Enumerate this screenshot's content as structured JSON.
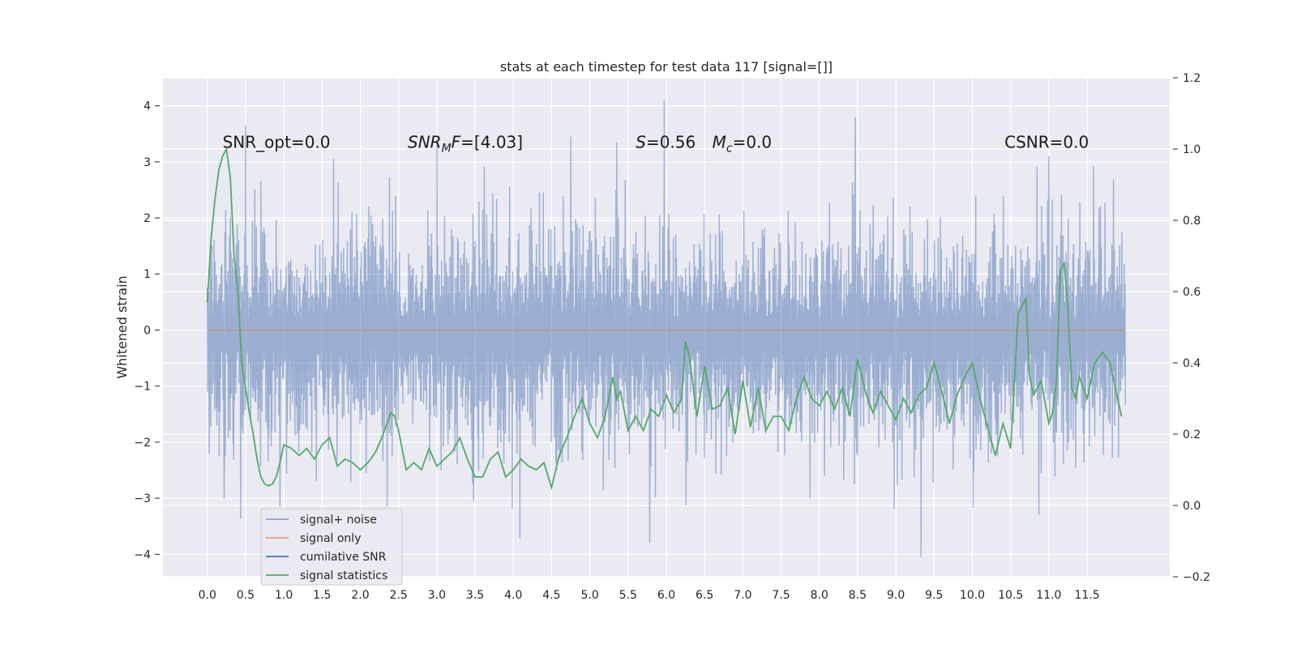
{
  "chart_data": {
    "type": "line",
    "title": "stats at each timestep for test data 117 [signal=[]]",
    "ylabel": "Whitened strain",
    "xlim": [
      -0.58,
      12.58
    ],
    "ylim": [
      -4.4,
      4.5
    ],
    "y2lim": [
      -0.2,
      1.2
    ],
    "x_ticks": [
      0.0,
      0.5,
      1.0,
      1.5,
      2.0,
      2.5,
      3.0,
      3.5,
      4.0,
      4.5,
      5.0,
      5.5,
      6.0,
      6.5,
      7.0,
      7.5,
      8.0,
      8.5,
      9.0,
      9.5,
      10.0,
      10.5,
      11.0,
      11.5
    ],
    "x_tick_labels": [
      "0.0",
      "0.5",
      "1.0",
      "1.5",
      "2.0",
      "2.5",
      "3.0",
      "3.5",
      "4.0",
      "4.5",
      "5.0",
      "5.5",
      "6.0",
      "6.5",
      "7.0",
      "7.5",
      "8.0",
      "8.5",
      "9.0",
      "9.5",
      "10.0",
      "10.5",
      "11.0",
      "11.5"
    ],
    "y_ticks": [
      4,
      3,
      2,
      1,
      0,
      -1,
      -2,
      -3,
      -4
    ],
    "y_tick_labels": [
      "4",
      "3",
      "2",
      "1",
      "0",
      "−1",
      "−2",
      "−3",
      "−4"
    ],
    "y2_ticks": [
      1.2,
      1.0,
      0.8,
      0.6,
      0.4,
      0.2,
      0.0,
      -0.2
    ],
    "y2_tick_labels": [
      "1.2",
      "1.0",
      "0.8",
      "0.6",
      "0.4",
      "0.2",
      "0.0",
      "−0.2"
    ],
    "grid": true,
    "legend_placement": "lower-left",
    "annotations": [
      {
        "parts": [
          {
            "t": "SNR_opt=0.0"
          }
        ],
        "x": 0.2,
        "y": 3.25
      },
      {
        "parts": [
          {
            "t": "SNR",
            "italic": true
          },
          {
            "t": "M",
            "italic": true,
            "sub": true
          },
          {
            "t": "F",
            "italic": true
          },
          {
            "t": "=[4.03]"
          }
        ],
        "x": 2.62,
        "y": 3.25
      },
      {
        "parts": [
          {
            "t": "S",
            "italic": true
          },
          {
            "t": "=0.56"
          }
        ],
        "x": 5.6,
        "y": 3.25
      },
      {
        "parts": [
          {
            "t": "M",
            "italic": true
          },
          {
            "t": "c",
            "italic": true,
            "sub": true
          },
          {
            "t": "=0.0"
          }
        ],
        "x": 6.6,
        "y": 3.25
      },
      {
        "parts": [
          {
            "t": "CSNR=0.0"
          }
        ],
        "x": 10.42,
        "y": 3.25
      }
    ],
    "series": [
      {
        "name": "signal+ noise",
        "color": "#4c72b0",
        "style": "dense-noise",
        "x_range": [
          0.0,
          12.0
        ],
        "envelope_upper_typical": [
          1.5,
          2.3
        ],
        "envelope_lower_typical": [
          -2.4,
          -1.6
        ],
        "peaks": [
          {
            "x": 0.5,
            "y": 3.65
          },
          {
            "x": 1.65,
            "y": 3.05
          },
          {
            "x": 3.0,
            "y": 3.4
          },
          {
            "x": 4.75,
            "y": 3.45
          },
          {
            "x": 5.35,
            "y": 3.35
          },
          {
            "x": 5.97,
            "y": 4.1
          },
          {
            "x": 8.47,
            "y": 3.8
          },
          {
            "x": 11.0,
            "y": 3.1
          },
          {
            "x": 5.78,
            "y": -3.8
          },
          {
            "x": 9.33,
            "y": -4.05
          },
          {
            "x": 10.87,
            "y": -3.3
          },
          {
            "x": 2.35,
            "y": -3.15
          },
          {
            "x": 3.48,
            "y": -3.05
          },
          {
            "x": 0.95,
            "y": -3.15
          },
          {
            "x": 8.98,
            "y": -3.2
          },
          {
            "x": 0.22,
            "y": -3.0
          }
        ]
      },
      {
        "name": "signal only",
        "color": "#dd8452",
        "x": [
          0.0,
          12.0
        ],
        "y": [
          0.0,
          0.0
        ]
      },
      {
        "name": "cumilative SNR",
        "color": "#4c72b0",
        "x": [],
        "y": []
      },
      {
        "name": "signal statistics",
        "color": "#55a868",
        "axis": "right",
        "x": [
          0.0,
          0.05,
          0.1,
          0.15,
          0.2,
          0.25,
          0.3,
          0.35,
          0.4,
          0.45,
          0.5,
          0.55,
          0.6,
          0.65,
          0.7,
          0.75,
          0.8,
          0.85,
          0.9,
          0.95,
          1.0,
          1.1,
          1.2,
          1.3,
          1.4,
          1.5,
          1.6,
          1.7,
          1.8,
          1.9,
          2.0,
          2.1,
          2.2,
          2.3,
          2.4,
          2.45,
          2.5,
          2.6,
          2.7,
          2.8,
          2.9,
          3.0,
          3.1,
          3.2,
          3.3,
          3.4,
          3.5,
          3.6,
          3.7,
          3.8,
          3.9,
          4.0,
          4.1,
          4.2,
          4.3,
          4.4,
          4.5,
          4.6,
          4.7,
          4.8,
          4.9,
          5.0,
          5.1,
          5.2,
          5.3,
          5.35,
          5.4,
          5.5,
          5.6,
          5.7,
          5.8,
          5.9,
          6.0,
          6.1,
          6.2,
          6.25,
          6.3,
          6.4,
          6.5,
          6.6,
          6.7,
          6.8,
          6.9,
          7.0,
          7.1,
          7.2,
          7.3,
          7.4,
          7.5,
          7.6,
          7.7,
          7.8,
          7.9,
          8.0,
          8.1,
          8.2,
          8.3,
          8.4,
          8.5,
          8.6,
          8.7,
          8.8,
          8.9,
          9.0,
          9.1,
          9.2,
          9.3,
          9.4,
          9.5,
          9.6,
          9.7,
          9.8,
          9.9,
          10.0,
          10.1,
          10.2,
          10.3,
          10.4,
          10.5,
          10.6,
          10.7,
          10.75,
          10.8,
          10.9,
          11.0,
          11.05,
          11.1,
          11.15,
          11.2,
          11.25,
          11.3,
          11.35,
          11.4,
          11.5,
          11.6,
          11.7,
          11.8,
          11.9,
          11.95
        ],
        "y": [
          0.57,
          0.75,
          0.86,
          0.94,
          0.98,
          1.0,
          0.92,
          0.7,
          0.6,
          0.4,
          0.33,
          0.26,
          0.2,
          0.13,
          0.08,
          0.06,
          0.055,
          0.06,
          0.08,
          0.12,
          0.17,
          0.16,
          0.14,
          0.16,
          0.13,
          0.17,
          0.19,
          0.11,
          0.13,
          0.12,
          0.1,
          0.12,
          0.15,
          0.2,
          0.26,
          0.25,
          0.21,
          0.1,
          0.12,
          0.1,
          0.16,
          0.11,
          0.13,
          0.15,
          0.19,
          0.13,
          0.08,
          0.08,
          0.13,
          0.15,
          0.08,
          0.1,
          0.13,
          0.11,
          0.1,
          0.12,
          0.05,
          0.14,
          0.19,
          0.25,
          0.3,
          0.23,
          0.19,
          0.25,
          0.36,
          0.3,
          0.32,
          0.21,
          0.25,
          0.21,
          0.27,
          0.25,
          0.31,
          0.26,
          0.3,
          0.46,
          0.42,
          0.25,
          0.39,
          0.27,
          0.28,
          0.33,
          0.2,
          0.35,
          0.22,
          0.33,
          0.21,
          0.25,
          0.25,
          0.21,
          0.3,
          0.36,
          0.3,
          0.28,
          0.32,
          0.27,
          0.33,
          0.25,
          0.41,
          0.32,
          0.26,
          0.32,
          0.28,
          0.24,
          0.3,
          0.26,
          0.31,
          0.33,
          0.4,
          0.32,
          0.23,
          0.31,
          0.36,
          0.4,
          0.3,
          0.22,
          0.14,
          0.23,
          0.16,
          0.54,
          0.58,
          0.36,
          0.31,
          0.35,
          0.23,
          0.26,
          0.35,
          0.66,
          0.68,
          0.55,
          0.33,
          0.3,
          0.36,
          0.3,
          0.4,
          0.43,
          0.4,
          0.3,
          0.25
        ]
      }
    ]
  }
}
